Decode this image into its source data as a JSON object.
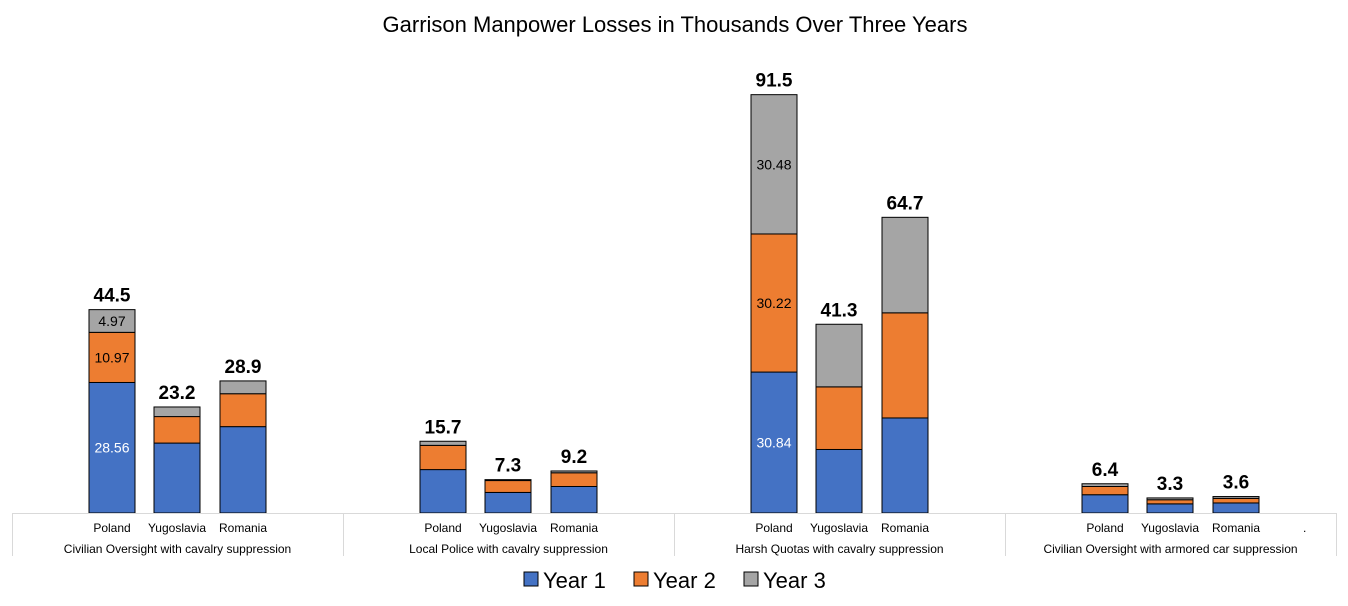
{
  "chart_data": {
    "type": "bar",
    "stacked": true,
    "title": "Garrison Manpower Losses in Thousands Over Three Years",
    "xlabel": "",
    "ylabel": "",
    "ylim": [
      0,
      100
    ],
    "grid": false,
    "legend_position": "bottom",
    "groups": [
      {
        "label": "Civilian Oversight with cavalry suppression",
        "bars": [
          {
            "category": "Poland",
            "values": [
              28.56,
              10.97,
              4.97
            ],
            "total": "44.5",
            "labels": [
              "28.56",
              "10.97",
              "4.97"
            ]
          },
          {
            "category": "Yugoslavia",
            "values": [
              15.3,
              5.8,
              2.1
            ],
            "total": "23.2",
            "labels": [
              "",
              "",
              ""
            ]
          },
          {
            "category": "Romania",
            "values": [
              18.9,
              7.2,
              2.8
            ],
            "total": "28.9",
            "labels": [
              "",
              "",
              ""
            ]
          }
        ]
      },
      {
        "label": "Local Police with cavalry suppression",
        "bars": [
          {
            "category": "Poland",
            "values": [
              9.5,
              5.3,
              0.9
            ],
            "total": "15.7",
            "labels": [
              "",
              "",
              ""
            ]
          },
          {
            "category": "Yugoslavia",
            "values": [
              4.5,
              2.6,
              0.2
            ],
            "total": "7.3",
            "labels": [
              "",
              "",
              ""
            ]
          },
          {
            "category": "Romania",
            "values": [
              5.8,
              3.0,
              0.4
            ],
            "total": "9.2",
            "labels": [
              "",
              "",
              ""
            ]
          }
        ]
      },
      {
        "label": "Harsh Quotas with cavalry suppression",
        "bars": [
          {
            "category": "Poland",
            "values": [
              30.84,
              30.22,
              30.48
            ],
            "total": "91.5",
            "labels": [
              "30.84",
              "30.22",
              "30.48"
            ]
          },
          {
            "category": "Yugoslavia",
            "values": [
              13.9,
              13.7,
              13.7
            ],
            "total": "41.3",
            "labels": [
              "",
              "",
              ""
            ]
          },
          {
            "category": "Romania",
            "values": [
              20.8,
              23.0,
              20.9
            ],
            "total": "64.7",
            "labels": [
              "",
              "",
              ""
            ]
          }
        ]
      },
      {
        "label": "Civilian Oversight with armored car suppression",
        "bars": [
          {
            "category": "Poland",
            "values": [
              4.0,
              1.8,
              0.6
            ],
            "total": "6.4",
            "labels": [
              "",
              "",
              ""
            ]
          },
          {
            "category": "Yugoslavia",
            "values": [
              2.0,
              0.9,
              0.4
            ],
            "total": "3.3",
            "labels": [
              "",
              "",
              ""
            ]
          },
          {
            "category": "Romania",
            "values": [
              2.2,
              1.0,
              0.4
            ],
            "total": "3.6",
            "labels": [
              "",
              "",
              ""
            ]
          }
        ]
      }
    ],
    "series": [
      {
        "name": "Year 1",
        "color": "#4472c4"
      },
      {
        "name": "Year 2",
        "color": "#ed7d31"
      },
      {
        "name": "Year 3",
        "color": "#a5a5a5"
      }
    ],
    "segment_label_colors": [
      "#ffffff",
      "#000000",
      "#000000"
    ],
    "stray_mark": "."
  }
}
